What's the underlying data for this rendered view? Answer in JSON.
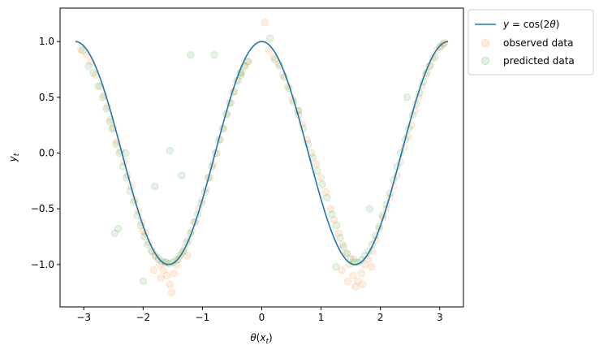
{
  "chart_data": {
    "type": "scatter",
    "xlabel": "θ(x_t)",
    "ylabel": "y_t",
    "xlim": [
      -3.4,
      3.4
    ],
    "ylim": [
      -1.38,
      1.3
    ],
    "x_ticks": [
      -3,
      -2,
      -1,
      0,
      1,
      2,
      3
    ],
    "y_ticks": [
      -1.0,
      -0.5,
      0.0,
      0.5,
      1.0
    ],
    "x_tick_labels": [
      "−3",
      "−2",
      "−1",
      "0",
      "1",
      "2",
      "3"
    ],
    "y_tick_labels": [
      "−1.0",
      "−0.5",
      "0.0",
      "0.5",
      "1.0"
    ],
    "grid": false,
    "legend_position": "outside-top-right",
    "legend_labels": {
      "model_line": "y = cos(2θ)",
      "observed": "observed data",
      "predicted": "predicted data"
    },
    "series": [
      {
        "name": "y = cos(2θ)",
        "kind": "line",
        "color": "#1f77b4",
        "function": "cos(2θ)",
        "x_range": [
          -3.14159,
          3.14159
        ]
      },
      {
        "name": "observed data",
        "kind": "scatter",
        "color": "#ff7f0e",
        "alpha": 0.13,
        "points": [
          [
            -3.05,
            0.93
          ],
          [
            -2.95,
            0.88
          ],
          [
            -2.88,
            0.82
          ],
          [
            -2.8,
            0.7
          ],
          [
            -2.72,
            0.6
          ],
          [
            -2.66,
            0.52
          ],
          [
            -2.6,
            0.42
          ],
          [
            -2.55,
            0.3
          ],
          [
            -2.5,
            0.22
          ],
          [
            -2.44,
            0.1
          ],
          [
            -2.38,
            0.02
          ],
          [
            -2.32,
            -0.08
          ],
          [
            -2.26,
            -0.2
          ],
          [
            -2.2,
            -0.3
          ],
          [
            -2.14,
            -0.42
          ],
          [
            -2.08,
            -0.52
          ],
          [
            -2.02,
            -0.62
          ],
          [
            -1.96,
            -0.72
          ],
          [
            -1.9,
            -0.8
          ],
          [
            -1.84,
            -0.88
          ],
          [
            -1.78,
            -0.93
          ],
          [
            -1.72,
            -1.0
          ],
          [
            -1.66,
            -1.05
          ],
          [
            -1.6,
            -1.1
          ],
          [
            -1.55,
            -1.18
          ],
          [
            -1.52,
            -1.25
          ],
          [
            -1.48,
            -1.08
          ],
          [
            -1.44,
            -1.0
          ],
          [
            -1.4,
            -0.95
          ],
          [
            -1.35,
            -0.9
          ],
          [
            -1.3,
            -0.85
          ],
          [
            -1.24,
            -0.78
          ],
          [
            -1.18,
            -0.7
          ],
          [
            -1.12,
            -0.62
          ],
          [
            -1.06,
            -0.5
          ],
          [
            -1.0,
            -0.42
          ],
          [
            -0.94,
            -0.32
          ],
          [
            -0.88,
            -0.22
          ],
          [
            -0.82,
            -0.1
          ],
          [
            -0.76,
            0.0
          ],
          [
            -0.7,
            0.12
          ],
          [
            -0.64,
            0.22
          ],
          [
            -0.58,
            0.35
          ],
          [
            -0.52,
            0.45
          ],
          [
            -0.46,
            0.55
          ],
          [
            -0.4,
            0.65
          ],
          [
            -0.34,
            0.72
          ],
          [
            -0.28,
            0.78
          ],
          [
            -0.22,
            0.82
          ],
          [
            0.05,
            1.17
          ],
          [
            0.12,
            0.92
          ],
          [
            0.2,
            0.86
          ],
          [
            0.28,
            0.8
          ],
          [
            0.36,
            0.7
          ],
          [
            0.44,
            0.6
          ],
          [
            0.52,
            0.48
          ],
          [
            0.6,
            0.38
          ],
          [
            0.68,
            0.26
          ],
          [
            0.76,
            0.12
          ],
          [
            0.84,
            0.0
          ],
          [
            0.92,
            -0.1
          ],
          [
            1.0,
            -0.22
          ],
          [
            1.08,
            -0.35
          ],
          [
            1.16,
            -0.5
          ],
          [
            1.22,
            -0.6
          ],
          [
            1.3,
            -0.72
          ],
          [
            1.36,
            -0.82
          ],
          [
            1.42,
            -0.9
          ],
          [
            1.48,
            -1.0
          ],
          [
            1.54,
            -1.1
          ],
          [
            1.58,
            -1.2
          ],
          [
            1.62,
            -1.15
          ],
          [
            1.68,
            -1.08
          ],
          [
            1.74,
            -1.0
          ],
          [
            1.8,
            -0.95
          ],
          [
            1.86,
            -0.88
          ],
          [
            1.92,
            -0.78
          ],
          [
            1.98,
            -0.68
          ],
          [
            2.04,
            -0.58
          ],
          [
            2.1,
            -0.5
          ],
          [
            2.16,
            -0.4
          ],
          [
            2.22,
            -0.3
          ],
          [
            2.28,
            -0.2
          ],
          [
            2.34,
            -0.08
          ],
          [
            2.4,
            0.05
          ],
          [
            2.46,
            0.15
          ],
          [
            2.52,
            0.25
          ],
          [
            2.58,
            0.38
          ],
          [
            2.64,
            0.5
          ],
          [
            2.7,
            0.6
          ],
          [
            2.76,
            0.7
          ],
          [
            2.82,
            0.78
          ],
          [
            2.88,
            0.85
          ],
          [
            2.95,
            0.92
          ],
          [
            3.02,
            0.96
          ],
          [
            3.08,
            0.99
          ],
          [
            -2.0,
            -0.7
          ],
          [
            -1.7,
            -1.12
          ],
          [
            -1.62,
            -0.98
          ],
          [
            1.45,
            -1.15
          ],
          [
            1.7,
            -1.18
          ],
          [
            1.55,
            -0.95
          ],
          [
            -1.82,
            -1.05
          ],
          [
            1.35,
            -1.05
          ],
          [
            -1.25,
            -0.92
          ],
          [
            1.85,
            -1.02
          ]
        ]
      },
      {
        "name": "predicted data",
        "kind": "scatter",
        "color": "#2ca02c",
        "alpha": 0.13,
        "points": [
          [
            -3.02,
            0.92
          ],
          [
            -2.92,
            0.78
          ],
          [
            -2.84,
            0.72
          ],
          [
            -2.76,
            0.6
          ],
          [
            -2.68,
            0.5
          ],
          [
            -2.62,
            0.4
          ],
          [
            -2.56,
            0.28
          ],
          [
            -2.52,
            0.22
          ],
          [
            -2.46,
            0.08
          ],
          [
            -2.4,
            0.0
          ],
          [
            -2.34,
            -0.12
          ],
          [
            -2.28,
            -0.22
          ],
          [
            -2.22,
            -0.34
          ],
          [
            -2.16,
            -0.44
          ],
          [
            -2.1,
            -0.56
          ],
          [
            -2.04,
            -0.65
          ],
          [
            -1.98,
            -0.75
          ],
          [
            -1.92,
            -0.82
          ],
          [
            -1.86,
            -0.88
          ],
          [
            -1.8,
            -0.92
          ],
          [
            -1.74,
            -0.95
          ],
          [
            -1.68,
            -0.97
          ],
          [
            -1.62,
            -0.98
          ],
          [
            -1.56,
            -0.99
          ],
          [
            -1.5,
            -0.98
          ],
          [
            -1.44,
            -0.96
          ],
          [
            -1.38,
            -0.92
          ],
          [
            -1.32,
            -0.88
          ],
          [
            -1.26,
            -0.8
          ],
          [
            -1.2,
            -0.72
          ],
          [
            -1.14,
            -0.62
          ],
          [
            -1.08,
            -0.55
          ],
          [
            -1.02,
            -0.45
          ],
          [
            -0.96,
            -0.35
          ],
          [
            -0.9,
            -0.22
          ],
          [
            -0.84,
            -0.12
          ],
          [
            -0.78,
            0.0
          ],
          [
            -0.72,
            0.12
          ],
          [
            -0.66,
            0.22
          ],
          [
            -0.6,
            0.35
          ],
          [
            -0.54,
            0.45
          ],
          [
            -0.48,
            0.55
          ],
          [
            -0.42,
            0.65
          ],
          [
            -0.36,
            0.72
          ],
          [
            -0.3,
            0.78
          ],
          [
            -0.24,
            0.82
          ],
          [
            0.14,
            1.03
          ],
          [
            0.22,
            0.84
          ],
          [
            0.3,
            0.78
          ],
          [
            0.38,
            0.68
          ],
          [
            0.46,
            0.58
          ],
          [
            0.54,
            0.46
          ],
          [
            0.62,
            0.34
          ],
          [
            0.7,
            0.22
          ],
          [
            0.78,
            0.08
          ],
          [
            0.86,
            -0.04
          ],
          [
            0.94,
            -0.16
          ],
          [
            1.02,
            -0.28
          ],
          [
            1.1,
            -0.4
          ],
          [
            1.18,
            -0.55
          ],
          [
            1.26,
            -0.65
          ],
          [
            1.32,
            -0.76
          ],
          [
            1.38,
            -0.84
          ],
          [
            1.44,
            -0.9
          ],
          [
            1.5,
            -0.95
          ],
          [
            1.56,
            -0.98
          ],
          [
            1.62,
            -0.98
          ],
          [
            1.68,
            -0.96
          ],
          [
            1.74,
            -0.92
          ],
          [
            1.8,
            -0.88
          ],
          [
            1.86,
            -0.82
          ],
          [
            1.92,
            -0.74
          ],
          [
            1.98,
            -0.66
          ],
          [
            2.04,
            -0.56
          ],
          [
            2.1,
            -0.46
          ],
          [
            2.16,
            -0.36
          ],
          [
            2.22,
            -0.24
          ],
          [
            2.28,
            -0.12
          ],
          [
            2.34,
            0.0
          ],
          [
            2.42,
            0.12
          ],
          [
            2.48,
            0.22
          ],
          [
            2.54,
            0.34
          ],
          [
            2.6,
            0.44
          ],
          [
            2.66,
            0.54
          ],
          [
            2.72,
            0.64
          ],
          [
            2.78,
            0.72
          ],
          [
            2.84,
            0.78
          ],
          [
            2.92,
            0.86
          ],
          [
            3.0,
            0.95
          ],
          [
            3.06,
            0.98
          ],
          [
            -1.2,
            0.88
          ],
          [
            -0.8,
            0.88
          ],
          [
            -1.55,
            0.02
          ],
          [
            -2.3,
            0.0
          ],
          [
            -2.0,
            -1.15
          ],
          [
            -2.48,
            -0.72
          ],
          [
            -2.42,
            -0.68
          ],
          [
            -1.8,
            -0.3
          ],
          [
            2.45,
            0.5
          ],
          [
            1.82,
            -0.5
          ],
          [
            -0.35,
            0.7
          ],
          [
            0.62,
            0.38
          ],
          [
            -1.35,
            -0.2
          ],
          [
            1.25,
            -1.02
          ]
        ]
      }
    ]
  }
}
